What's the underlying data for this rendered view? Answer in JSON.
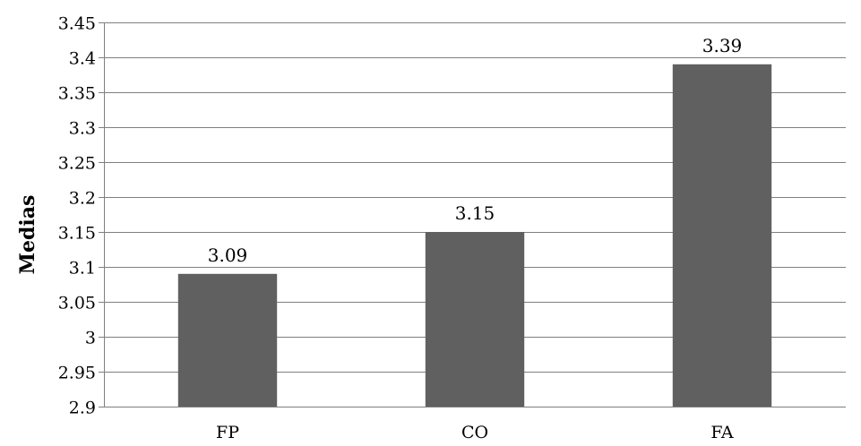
{
  "chart_data": {
    "type": "bar",
    "title": "",
    "xlabel": "",
    "ylabel": "Medias",
    "categories": [
      "FP",
      "CO",
      "FA"
    ],
    "values": [
      3.09,
      3.15,
      3.39
    ],
    "data_labels": [
      "3.09",
      "3.15",
      "3.39"
    ],
    "ylim": [
      2.9,
      3.45
    ],
    "y_ticks": [
      2.9,
      2.95,
      3,
      3.05,
      3.1,
      3.15,
      3.2,
      3.25,
      3.3,
      3.35,
      3.4,
      3.45
    ],
    "y_tick_labels": [
      "2.9",
      "2.95",
      "3",
      "3.05",
      "3.1",
      "3.15",
      "3.2",
      "3.25",
      "3.3",
      "3.35",
      "3.4",
      "3.45"
    ],
    "grid": true,
    "legend": "none",
    "bar_color": "#606060",
    "grid_color": "#7f7f7f"
  }
}
